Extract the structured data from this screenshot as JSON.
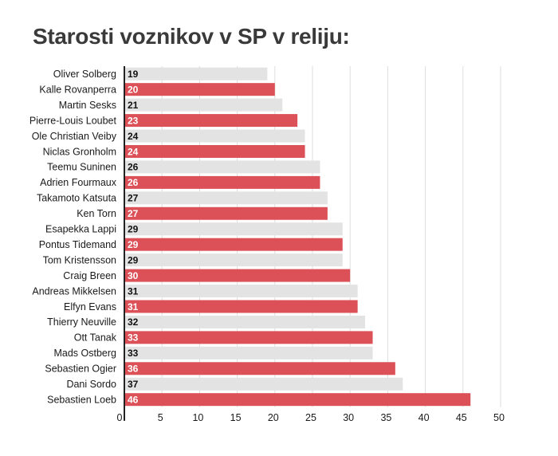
{
  "chart_data": {
    "type": "bar",
    "orientation": "horizontal",
    "title": "Starosti voznikov v SP v reliju:",
    "categories": [
      "Oliver Solberg",
      "Kalle Rovanperra",
      "Martin Sesks",
      "Pierre-Louis Loubet",
      "Ole Christian Veiby",
      "Niclas Gronholm",
      "Teemu Suninen",
      "Adrien Fourmaux",
      "Takamoto Katsuta",
      "Ken Torn",
      "Esapekka Lappi",
      "Pontus Tidemand",
      "Tom Kristensson",
      "Craig Breen",
      "Andreas Mikkelsen",
      "Elfyn Evans",
      "Thierry Neuville",
      "Ott Tanak",
      "Mads Ostberg",
      "Sebastien Ogier",
      "Dani Sordo",
      "Sebastien Loeb"
    ],
    "values": [
      19,
      20,
      21,
      23,
      24,
      24,
      26,
      26,
      27,
      27,
      29,
      29,
      29,
      30,
      31,
      31,
      32,
      33,
      33,
      36,
      37,
      46
    ],
    "value_labels": [
      "19",
      "20",
      "21",
      "23",
      "24",
      "24",
      "26",
      "26",
      "27",
      "27",
      "29",
      "29",
      "29",
      "30",
      "31",
      "31",
      "32",
      "33",
      "33",
      "36",
      "37",
      "46"
    ],
    "xlim": [
      0,
      50
    ],
    "x_ticks": [
      "0",
      "5",
      "10",
      "15",
      "20",
      "25",
      "30",
      "35",
      "40",
      "45",
      "50"
    ],
    "grid": true,
    "xlabel": "",
    "ylabel": "",
    "colors": {
      "red": "#dc5157",
      "gray": "#e3e3e3",
      "grid": "#dedede",
      "axis": "#222222"
    },
    "bar_colors": [
      "gray",
      "red",
      "gray",
      "red",
      "gray",
      "red",
      "gray",
      "red",
      "gray",
      "red",
      "gray",
      "red",
      "gray",
      "red",
      "gray",
      "red",
      "gray",
      "red",
      "gray",
      "red",
      "gray",
      "red"
    ]
  }
}
